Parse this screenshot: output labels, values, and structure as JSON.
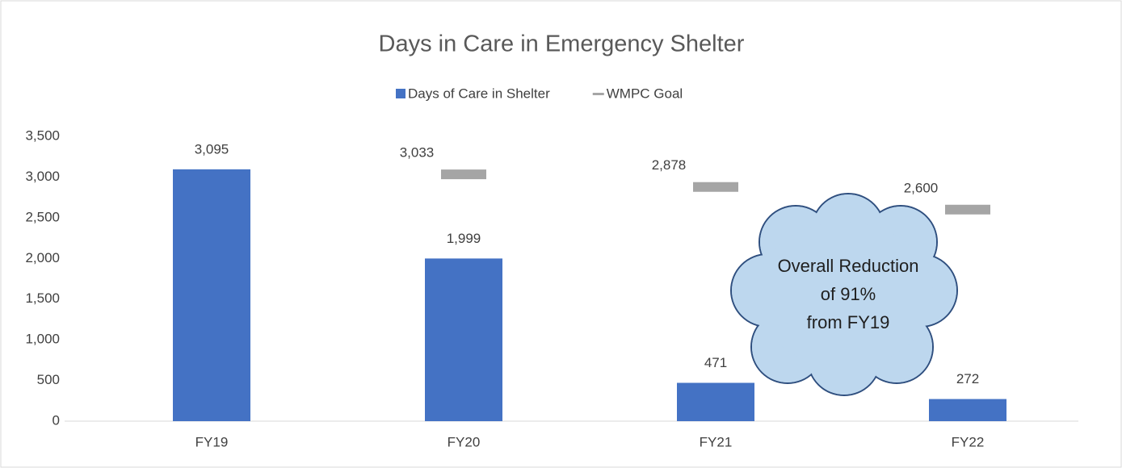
{
  "chart_data": {
    "type": "bar",
    "title": "Days in Care in Emergency Shelter",
    "categories": [
      "FY19",
      "FY20",
      "FY21",
      "FY22"
    ],
    "series": [
      {
        "name": "Days of Care in Shelter",
        "type": "bar",
        "color": "#4472c4",
        "values": [
          3095,
          1999,
          471,
          272
        ],
        "value_labels": [
          "3,095",
          "1,999",
          "471",
          "272"
        ]
      },
      {
        "name": "WMPC Goal",
        "type": "marker",
        "color": "#a5a5a5",
        "values": [
          null,
          3033,
          2878,
          2600
        ],
        "value_labels": [
          null,
          "3,033",
          "2,878",
          "2,600"
        ]
      }
    ],
    "ylim": [
      0,
      3500
    ],
    "yticks": [
      0,
      500,
      {
        "value": 1000,
        "label": "1,000"
      },
      {
        "value": 1500,
        "label": "1,500"
      },
      {
        "value": 2000,
        "label": "2,000"
      },
      {
        "value": 2500,
        "label": "2,500"
      },
      {
        "value": 3000,
        "label": "3,000"
      },
      {
        "value": 3500,
        "label": "3,500"
      }
    ],
    "legend": "top",
    "annotation": [
      "Overall Reduction",
      "of 91%",
      "from FY19"
    ]
  }
}
